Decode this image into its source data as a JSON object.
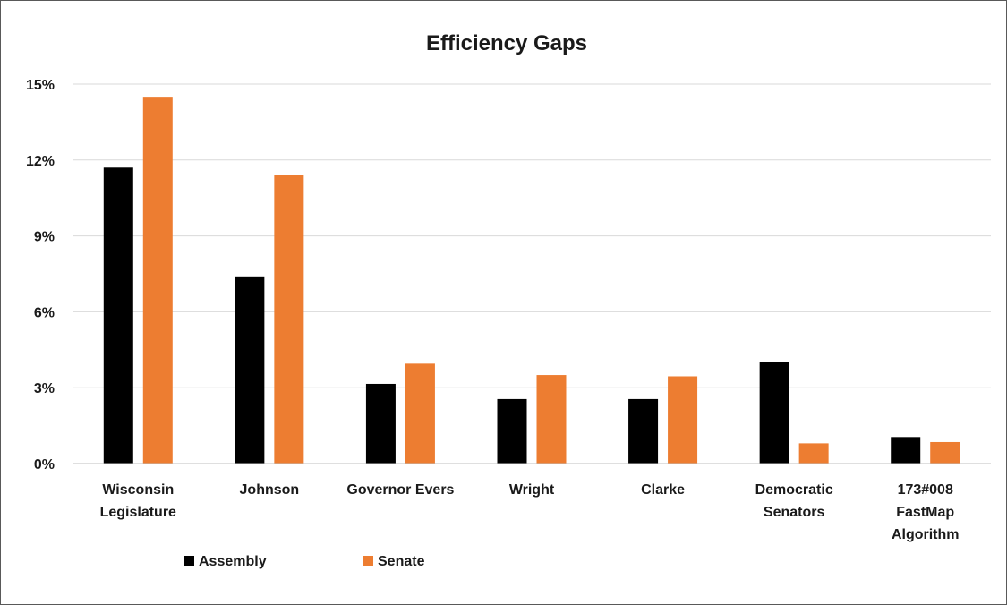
{
  "chart_data": {
    "type": "bar",
    "title": "Efficiency Gaps",
    "xlabel": "",
    "ylabel": "",
    "categories": [
      [
        "Wisconsin",
        "Legislature"
      ],
      [
        "Johnson"
      ],
      [
        "Governor Evers"
      ],
      [
        "Wright"
      ],
      [
        "Clarke"
      ],
      [
        "Democratic",
        "Senators"
      ],
      [
        "173#008",
        "FastMap",
        "Algorithm"
      ]
    ],
    "series": [
      {
        "name": "Assembly",
        "color": "#000000",
        "values": [
          11.7,
          7.4,
          3.15,
          2.55,
          2.55,
          4.0,
          1.05
        ]
      },
      {
        "name": "Senate",
        "color": "#ED7D31",
        "values": [
          14.5,
          11.4,
          3.95,
          3.5,
          3.45,
          0.8,
          0.85
        ]
      }
    ],
    "yticks": [
      "0%",
      "3%",
      "6%",
      "9%",
      "12%",
      "15%"
    ],
    "ytick_values": [
      0,
      3,
      6,
      9,
      12,
      15
    ],
    "ylim": [
      0,
      15
    ],
    "grid": true,
    "legend_position": "bottom-left",
    "gridline_color": "#D9D9D9",
    "axis_color": "#BFBFBF"
  }
}
